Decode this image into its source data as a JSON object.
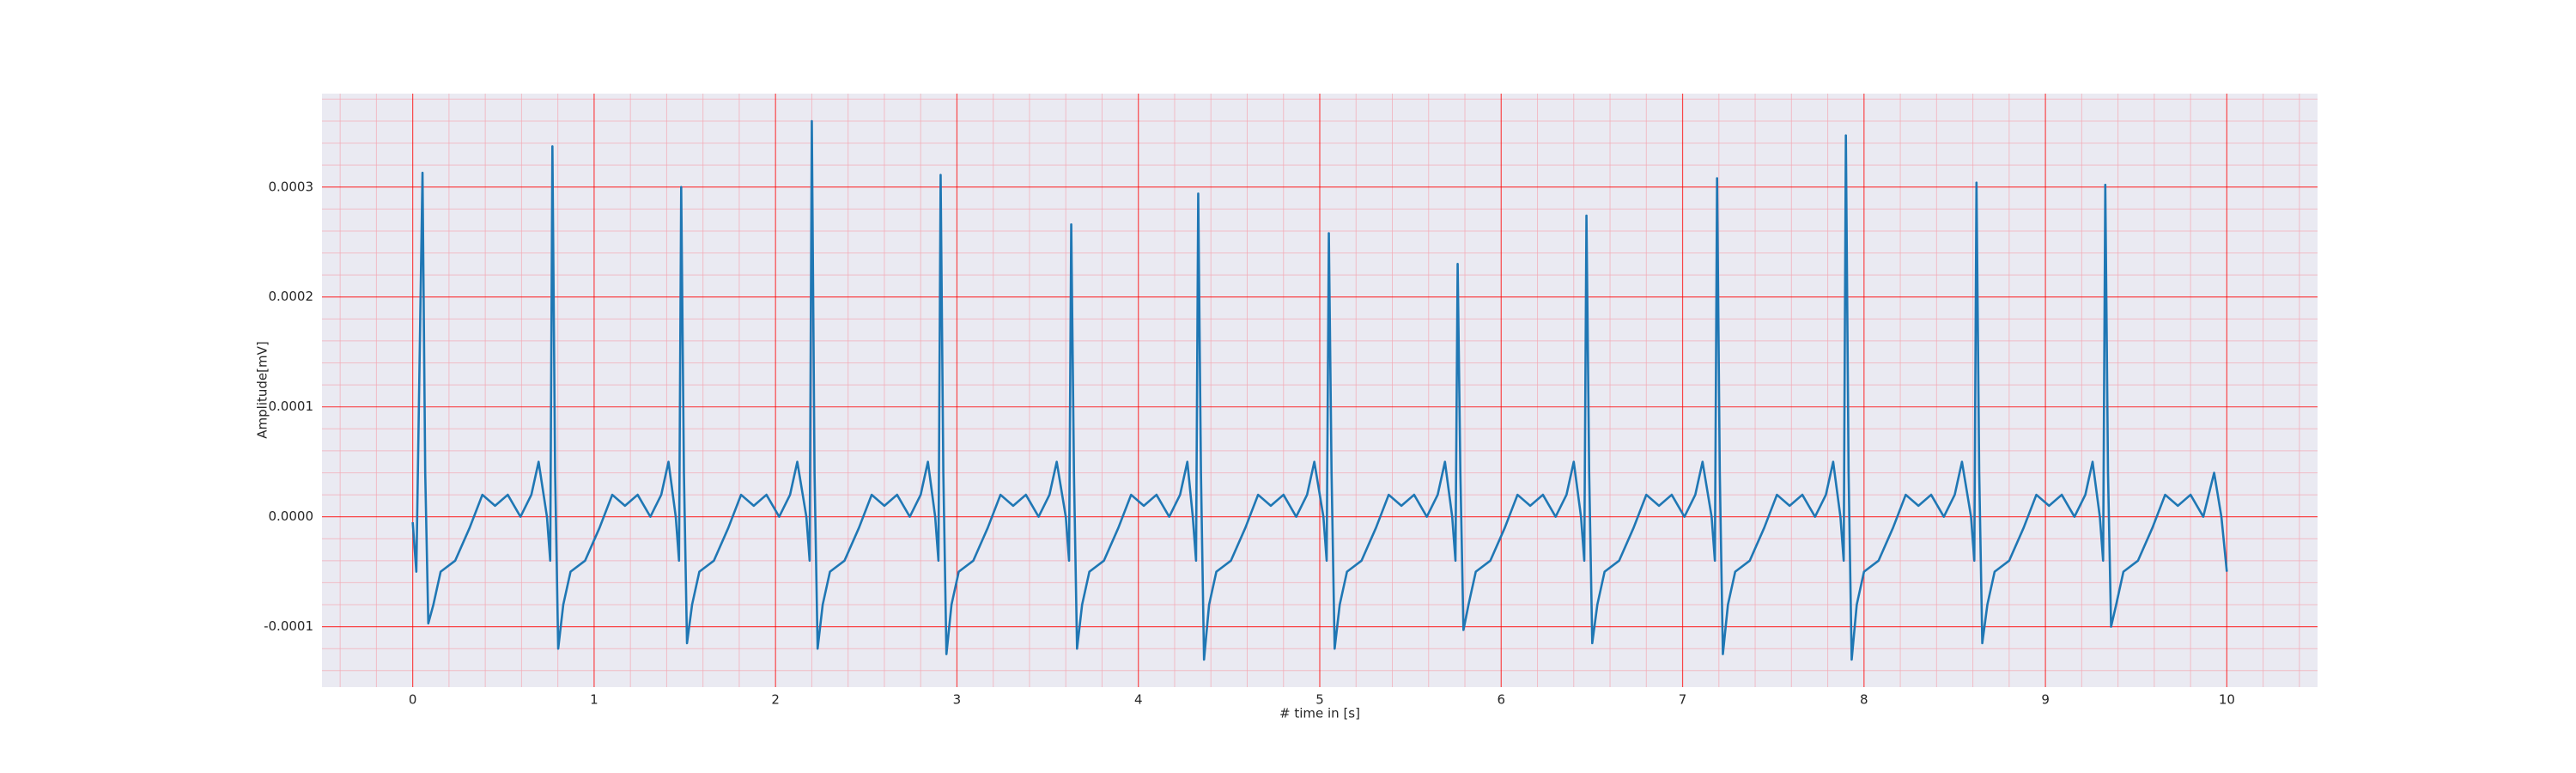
{
  "chart_data": {
    "type": "line",
    "xlabel": "# time in [s]",
    "ylabel": "Amplitude[mV]",
    "color": "#1f77b4",
    "background": "#eaeaf2",
    "grid": true,
    "grid_color": "#ff0000",
    "minor_grid": true,
    "minor_grid_color": "#f4a8b4",
    "xlim": [
      -0.5,
      10.5
    ],
    "ylim": [
      -0.000155,
      0.000385
    ],
    "xticks": [
      0,
      1,
      2,
      3,
      4,
      5,
      6,
      7,
      8,
      9,
      10
    ],
    "yticks": [
      {
        "value": -0.0001,
        "label": "-0.0001"
      },
      {
        "value": 0,
        "label": "0.0000"
      },
      {
        "value": 0.0001,
        "label": "0.0001"
      },
      {
        "value": 0.0002,
        "label": "0.0002"
      },
      {
        "value": 0.0003,
        "label": "0.0003"
      }
    ],
    "xminorticks": [
      -0.4,
      -0.2,
      0.2,
      0.4,
      0.6,
      0.8,
      1.2,
      1.4,
      1.6,
      1.8,
      2.2,
      2.4,
      2.6,
      2.8,
      3.2,
      3.4,
      3.6,
      3.8,
      4.2,
      4.4,
      4.6,
      4.8,
      5.2,
      5.4,
      5.6,
      5.8,
      6.2,
      6.4,
      6.6,
      6.8,
      7.2,
      7.4,
      7.6,
      7.8,
      8.2,
      8.4,
      8.6,
      8.8,
      9.2,
      9.4,
      9.6,
      9.8,
      10.2,
      10.4
    ],
    "yminorticks": [
      -0.00014,
      -0.00012,
      -8e-05,
      -6e-05,
      -4e-05,
      -2e-05,
      2e-05,
      4e-05,
      6e-05,
      8e-05,
      0.00012,
      0.00014,
      0.00016,
      0.00018,
      0.00022,
      0.00024,
      0.00026,
      0.00028,
      0.00032,
      0.00034,
      0.00036,
      0.00038
    ],
    "x": [
      0,
      0.02,
      0.054,
      0.069,
      0.086,
      0.114,
      0.154,
      0.234,
      0.314,
      0.384,
      0.454,
      0.524,
      0.594,
      0.654,
      0.694,
      0.74,
      0.758,
      0.77,
      0.785,
      0.802,
      0.83,
      0.87,
      0.95,
      1.03,
      1.1,
      1.17,
      1.24,
      1.31,
      1.37,
      1.41,
      1.45,
      1.468,
      1.48,
      1.495,
      1.512,
      1.54,
      1.58,
      1.66,
      1.74,
      1.81,
      1.88,
      1.95,
      2.02,
      2.08,
      2.12,
      2.17,
      2.188,
      2.2,
      2.215,
      2.232,
      2.26,
      2.3,
      2.38,
      2.46,
      2.53,
      2.6,
      2.67,
      2.74,
      2.8,
      2.84,
      2.88,
      2.898,
      2.91,
      2.925,
      2.942,
      2.97,
      3.01,
      3.09,
      3.17,
      3.24,
      3.31,
      3.38,
      3.45,
      3.51,
      3.55,
      3.6,
      3.618,
      3.63,
      3.645,
      3.662,
      3.69,
      3.73,
      3.81,
      3.89,
      3.96,
      4.03,
      4.1,
      4.17,
      4.23,
      4.27,
      4.3,
      4.318,
      4.33,
      4.345,
      4.362,
      4.39,
      4.43,
      4.51,
      4.59,
      4.66,
      4.73,
      4.8,
      4.87,
      4.93,
      4.97,
      5.02,
      5.038,
      5.05,
      5.065,
      5.082,
      5.11,
      5.15,
      5.23,
      5.31,
      5.38,
      5.45,
      5.52,
      5.59,
      5.65,
      5.69,
      5.73,
      5.748,
      5.76,
      5.775,
      5.792,
      5.82,
      5.86,
      5.94,
      6.02,
      6.09,
      6.16,
      6.23,
      6.3,
      6.36,
      6.4,
      6.44,
      6.458,
      6.47,
      6.485,
      6.502,
      6.53,
      6.57,
      6.65,
      6.73,
      6.8,
      6.87,
      6.94,
      7.01,
      7.07,
      7.11,
      7.16,
      7.178,
      7.19,
      7.205,
      7.222,
      7.25,
      7.29,
      7.37,
      7.45,
      7.52,
      7.59,
      7.66,
      7.73,
      7.79,
      7.83,
      7.87,
      7.888,
      7.9,
      7.915,
      7.932,
      7.96,
      8.0,
      8.08,
      8.16,
      8.23,
      8.3,
      8.37,
      8.44,
      8.5,
      8.54,
      8.59,
      8.608,
      8.62,
      8.635,
      8.652,
      8.68,
      8.72,
      8.8,
      8.88,
      8.95,
      9.02,
      9.09,
      9.16,
      9.22,
      9.26,
      9.3,
      9.318,
      9.33,
      9.345,
      9.362,
      9.39,
      9.43,
      9.51,
      9.59,
      9.66,
      9.73,
      9.8,
      9.87,
      9.93,
      9.97,
      10.0
    ],
    "values": [
      -5e-06,
      -5e-05,
      0.000313,
      4e-05,
      -9.7e-05,
      -8e-05,
      -5e-05,
      -4e-05,
      -1e-05,
      2e-05,
      1e-05,
      2e-05,
      0.0,
      2e-05,
      5e-05,
      0.0,
      -4e-05,
      0.000337,
      4e-05,
      -0.00012,
      -8e-05,
      -5e-05,
      -4e-05,
      -1e-05,
      2e-05,
      1e-05,
      2e-05,
      0.0,
      2e-05,
      5e-05,
      0.0,
      -4e-05,
      0.0003,
      4e-05,
      -0.000115,
      -8e-05,
      -5e-05,
      -4e-05,
      -1e-05,
      2e-05,
      1e-05,
      2e-05,
      0.0,
      2e-05,
      5e-05,
      0.0,
      -4e-05,
      0.00036,
      4e-05,
      -0.00012,
      -8e-05,
      -5e-05,
      -4e-05,
      -1e-05,
      2e-05,
      1e-05,
      2e-05,
      0.0,
      2e-05,
      5e-05,
      0.0,
      -4e-05,
      0.000311,
      4e-05,
      -0.000125,
      -8e-05,
      -5e-05,
      -4e-05,
      -1e-05,
      2e-05,
      1e-05,
      2e-05,
      0.0,
      2e-05,
      5e-05,
      0.0,
      -4e-05,
      0.000266,
      4e-05,
      -0.00012,
      -8e-05,
      -5e-05,
      -4e-05,
      -1e-05,
      2e-05,
      1e-05,
      2e-05,
      0.0,
      2e-05,
      5e-05,
      0.0,
      -4e-05,
      0.000294,
      4e-05,
      -0.00013,
      -8e-05,
      -5e-05,
      -4e-05,
      -1e-05,
      2e-05,
      1e-05,
      2e-05,
      0.0,
      2e-05,
      5e-05,
      0.0,
      -4e-05,
      0.000258,
      4e-05,
      -0.00012,
      -8e-05,
      -5e-05,
      -4e-05,
      -1e-05,
      2e-05,
      1e-05,
      2e-05,
      0.0,
      2e-05,
      5e-05,
      0.0,
      -4e-05,
      0.00023,
      4e-05,
      -0.000103,
      -8e-05,
      -5e-05,
      -4e-05,
      -1e-05,
      2e-05,
      1e-05,
      2e-05,
      0.0,
      2e-05,
      5e-05,
      0.0,
      -4e-05,
      0.000274,
      4e-05,
      -0.000115,
      -8e-05,
      -5e-05,
      -4e-05,
      -1e-05,
      2e-05,
      1e-05,
      2e-05,
      0.0,
      2e-05,
      5e-05,
      0.0,
      -4e-05,
      0.000308,
      4e-05,
      -0.000125,
      -8e-05,
      -5e-05,
      -4e-05,
      -1e-05,
      2e-05,
      1e-05,
      2e-05,
      0.0,
      2e-05,
      5e-05,
      0.0,
      -4e-05,
      0.000347,
      4e-05,
      -0.00013,
      -8e-05,
      -5e-05,
      -4e-05,
      -1e-05,
      2e-05,
      1e-05,
      2e-05,
      0.0,
      2e-05,
      5e-05,
      0.0,
      -4e-05,
      0.000304,
      4e-05,
      -0.000115,
      -8e-05,
      -5e-05,
      -4e-05,
      -1e-05,
      2e-05,
      1e-05,
      2e-05,
      0.0,
      2e-05,
      5e-05,
      0.0,
      -4e-05,
      0.000302,
      4e-05,
      -0.0001,
      -8e-05,
      -5e-05,
      -4e-05,
      -1e-05,
      2e-05,
      1e-05,
      2e-05,
      0.0,
      4e-05,
      0.0,
      -5e-05
    ]
  }
}
